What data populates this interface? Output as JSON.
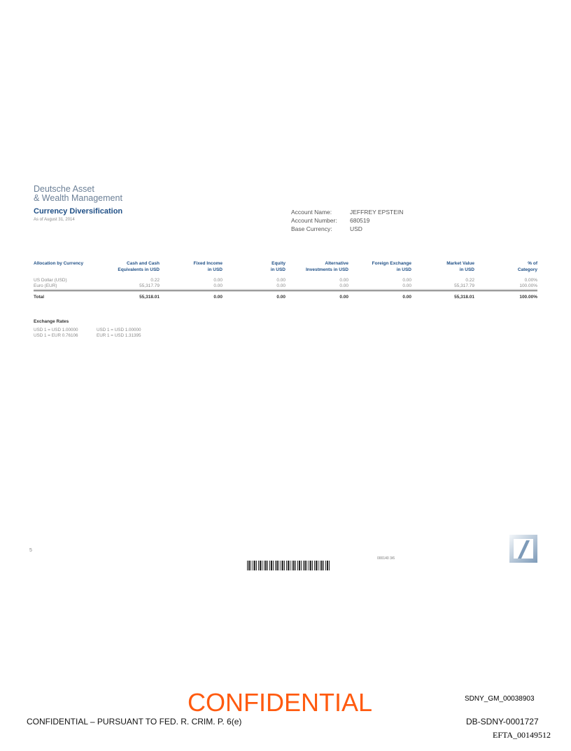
{
  "brand": {
    "line1": "Deutsche Asset",
    "line2": "& Wealth Management"
  },
  "title": "Currency Diversification",
  "as_of": "As of August 31, 2014",
  "account": {
    "name_label": "Account Name:",
    "name": "JEFFREY EPSTEIN",
    "number_label": "Account Number:",
    "number": "680519",
    "currency_label": "Base Currency:",
    "currency": "USD"
  },
  "table": {
    "headers": [
      [
        "Allocation by Currency",
        ""
      ],
      [
        "Cash and Cash",
        "Equivalents in USD"
      ],
      [
        "Fixed Income",
        "in USD"
      ],
      [
        "Equity",
        "in USD"
      ],
      [
        "Alternative",
        "Investments in USD"
      ],
      [
        "Foreign Exchange",
        "in USD"
      ],
      [
        "Market Value",
        "in USD"
      ],
      [
        "% of",
        "Category"
      ]
    ],
    "rows": [
      [
        "US Dollar (USD)",
        "0.22",
        "0.00",
        "0.00",
        "0.00",
        "0.00",
        "0.22",
        "0.00%"
      ],
      [
        "Euro (EUR)",
        "55,317.79",
        "0.00",
        "0.00",
        "0.00",
        "0.00",
        "55,317.79",
        "100.00%"
      ]
    ],
    "total": [
      "Total",
      "55,318.01",
      "0.00",
      "0.00",
      "0.00",
      "0.00",
      "55,318.01",
      "100.00%"
    ]
  },
  "exchange": {
    "title": "Exchange Rates",
    "rates": [
      [
        "USD 1 = USD 1.00000",
        "USD 1 = USD 1.00000"
      ],
      [
        "USD 1 = EUR 0.76106",
        "EUR 1 = USD 1.31395"
      ]
    ]
  },
  "footer": {
    "page": "5",
    "code": "000140 3/6",
    "confidential": "CONFIDENTIAL",
    "legal": "CONFIDENTIAL – PURSUANT TO FED. R. CRIM. P. 6(e)",
    "bates1": "SDNY_GM_00038903",
    "bates2": "DB-SDNY-0001727",
    "bates3": "EFTA_00149512"
  },
  "colors": {
    "brand_blue": "#1f4f86",
    "confidential": "#ff5a0f"
  }
}
